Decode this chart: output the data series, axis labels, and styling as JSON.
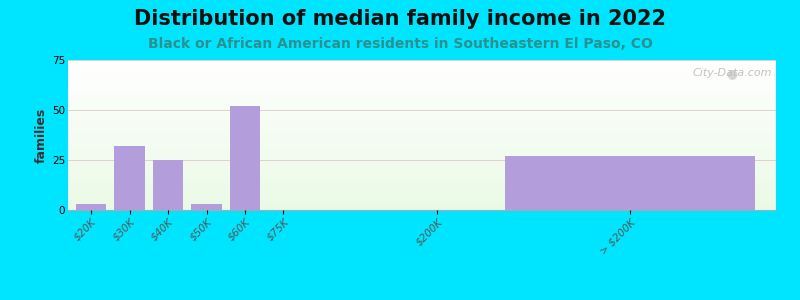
{
  "title": "Distribution of median family income in 2022",
  "subtitle": "Black or African American residents in Southeastern El Paso, CO",
  "categories": [
    "$20K",
    "$30K",
    "$40K",
    "$50K",
    "$60K",
    "$75K",
    "$200K",
    "> $200K"
  ],
  "values": [
    3,
    32,
    25,
    3,
    52,
    0,
    0,
    27
  ],
  "bar_color": "#b39ddb",
  "bg_outer": "#00e5ff",
  "ylabel": "families",
  "ylim": [
    0,
    75
  ],
  "yticks": [
    0,
    25,
    50,
    75
  ],
  "watermark": "City-Data.com",
  "title_fontsize": 15,
  "subtitle_fontsize": 10,
  "tick_fontsize": 7.5,
  "x_positions": [
    0,
    1,
    2,
    3,
    4,
    5,
    9,
    14
  ],
  "bar_widths": [
    0.8,
    0.8,
    0.8,
    0.8,
    0.8,
    0.8,
    0.8,
    6.5
  ],
  "xlim": [
    -0.6,
    17.8
  ]
}
